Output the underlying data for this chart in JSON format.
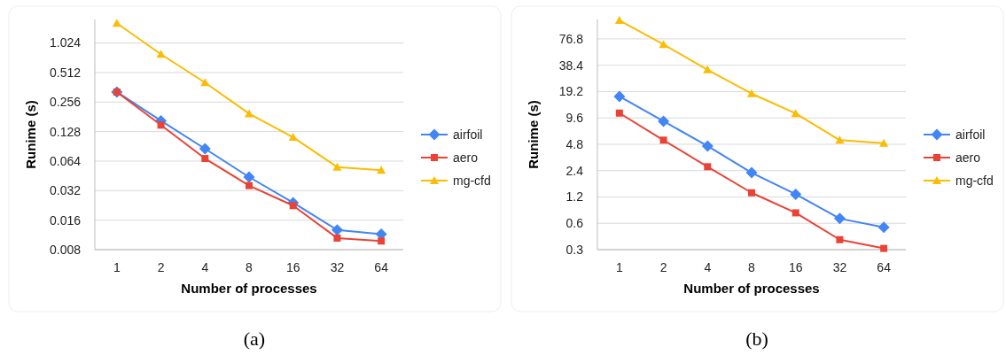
{
  "chart_data": [
    {
      "type": "line",
      "title": "(a)",
      "xlabel": "Number of processes",
      "ylabel": "Runime (s)",
      "categories": [
        "1",
        "2",
        "4",
        "8",
        "16",
        "32",
        "64"
      ],
      "log": "y",
      "ylim": [
        0.008,
        1.78
      ],
      "yticks": [
        0.008,
        0.016,
        0.032,
        0.064,
        0.128,
        0.256,
        0.512,
        1.024
      ],
      "grid": "y",
      "legend": "right",
      "line_style": "solid",
      "series": [
        {
          "name": "airfoil",
          "color": "#4285f4",
          "marker": "diamond",
          "values": [
            0.324,
            0.165,
            0.0856,
            0.044,
            0.0241,
            0.0127,
            0.0115
          ]
        },
        {
          "name": "aero",
          "color": "#ea4335",
          "marker": "square",
          "values": [
            0.324,
            0.149,
            0.068,
            0.036,
            0.0225,
            0.0105,
            0.0098
          ]
        },
        {
          "name": "mg-cfd",
          "color": "#fbbc04",
          "marker": "triangle",
          "values": [
            1.63,
            0.787,
            0.405,
            0.195,
            0.112,
            0.0557,
            0.0516
          ]
        }
      ]
    },
    {
      "type": "line",
      "title": "(b)",
      "xlabel": "Number of processes",
      "ylabel": "Runime (s)",
      "categories": [
        "1",
        "2",
        "4",
        "8",
        "16",
        "32",
        "64"
      ],
      "log": "y",
      "ylim": [
        0.3,
        128
      ],
      "yticks": [
        0.3,
        0.6,
        1.2,
        2.4,
        4.8,
        9.6,
        19.2,
        38.4,
        76.8
      ],
      "grid": "y",
      "legend": "right",
      "line_style": "solid",
      "series": [
        {
          "name": "airfoil",
          "color": "#4285f4",
          "marker": "diamond",
          "values": [
            16.9,
            8.8,
            4.58,
            2.27,
            1.29,
            0.68,
            0.54
          ]
        },
        {
          "name": "aero",
          "color": "#ea4335",
          "marker": "square",
          "values": [
            10.9,
            5.35,
            2.66,
            1.34,
            0.79,
            0.39,
            0.31
          ]
        },
        {
          "name": "mg-cfd",
          "color": "#fbbc04",
          "marker": "triangle",
          "values": [
            125,
            66.4,
            34.1,
            18.2,
            10.8,
            5.35,
            4.95
          ]
        }
      ]
    }
  ]
}
